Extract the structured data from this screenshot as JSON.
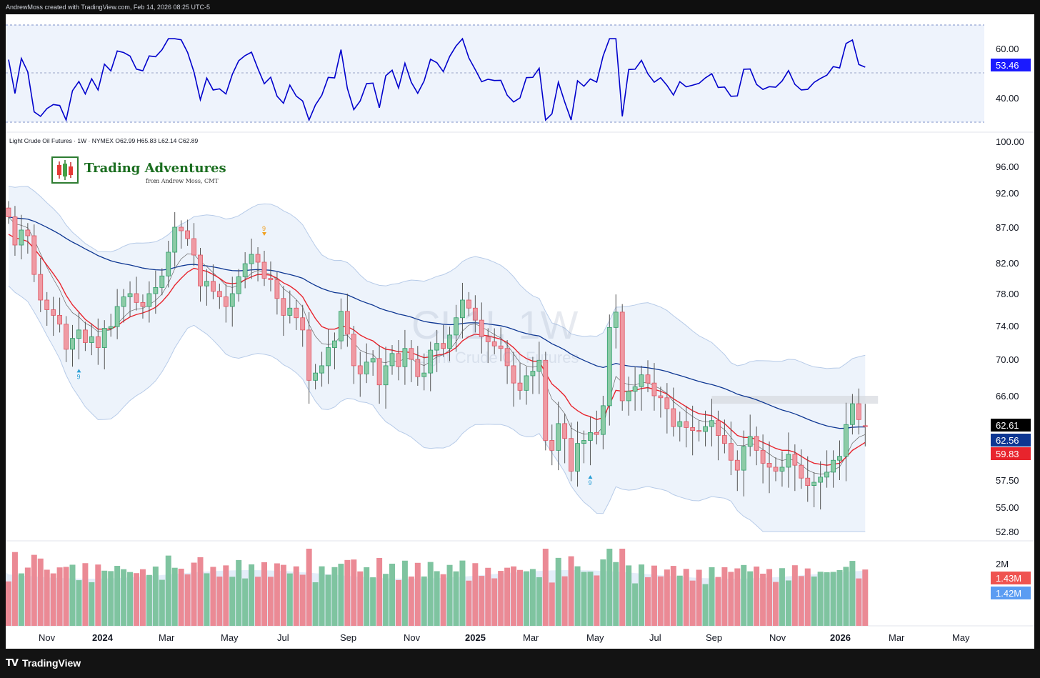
{
  "header": {
    "attribution": "AndrewMoss created with TradingView.com, Feb 14, 2026 08:25 UTC-5"
  },
  "footer": {
    "brand": "TradingView",
    "mark": "TV"
  },
  "legend": {
    "symbol_line": "Light Crude Oil Futures · 1W · NYMEX",
    "open": "O62.99",
    "high": "H65.83",
    "low": "L62.14",
    "close": "C62.89"
  },
  "logo": {
    "title": "Trading Adventures",
    "subtitle": "from Andrew Moss, CMT"
  },
  "watermark": {
    "ticker": "CL1!, 1W",
    "name": "Light Crude Oil Futures"
  },
  "colors": {
    "up": "#2e9e6a",
    "up_fill": "#8ccba6",
    "down": "#e05562",
    "down_fill": "#ef9aa3",
    "rsi_line": "#0000cc",
    "ema_fast": "#e8242d",
    "sma_slow": "#0d3692",
    "band": "#e6eefa"
  },
  "chart_data": [
    {
      "type": "candlestick",
      "title": "Light Crude Oil Futures · 1W · NYMEX",
      "y_ticks": [
        "100.00",
        "96.00",
        "92.00",
        "87.00",
        "82.00",
        "78.00",
        "74.00",
        "70.00",
        "66.00",
        "62.61",
        "62.56",
        "59.83",
        "57.50",
        "55.00",
        "52.80"
      ],
      "x_ticks": [
        "Nov",
        "2024",
        "Mar",
        "May",
        "Jul",
        "Sep",
        "Nov",
        "2025",
        "Mar",
        "May",
        "Jul",
        "Sep",
        "Nov",
        "2026",
        "Mar",
        "May"
      ],
      "ylim": [
        52.8,
        100
      ],
      "price_labels": [
        {
          "text": "62.61",
          "color": "#000000"
        },
        {
          "text": "62.56",
          "color": "#0d3692"
        },
        {
          "text": "59.83",
          "color": "#e8242d"
        }
      ],
      "td_markers": [
        {
          "text": "9",
          "direction": "up",
          "date": "2023-11"
        },
        {
          "text": "9",
          "direction": "down",
          "date": "2024-04"
        },
        {
          "text": "9",
          "direction": "up",
          "date": "2025-03"
        }
      ],
      "resistance_zone": [
        65.2,
        66.0
      ],
      "series": [
        {
          "name": "close",
          "values": [
            88.5,
            84.5,
            86.6,
            85.8,
            80.5,
            77.2,
            76.0,
            75.3,
            74.2,
            71.2,
            72.5,
            73.5,
            72.0,
            72.7,
            71.4,
            73.7,
            73.9,
            76.4,
            77.6,
            78.0,
            76.9,
            76.4,
            78.0,
            78.8,
            80.3,
            83.5,
            87.0,
            86.5,
            85.4,
            83.1,
            79.0,
            79.6,
            78.3,
            77.6,
            76.4,
            78.0,
            80.2,
            81.9,
            83.2,
            82.1,
            80.0,
            79.8,
            77.4,
            75.3,
            76.2,
            75.0,
            73.5,
            67.7,
            68.5,
            69.3,
            71.4,
            72.2,
            75.8,
            73.0,
            69.3,
            68.4,
            69.7,
            70.1,
            67.2,
            69.3,
            70.7,
            69.2,
            71.3,
            70.0,
            68.1,
            68.5,
            71.1,
            71.9,
            71.3,
            72.9,
            75.0,
            77.2,
            76.2,
            74.7,
            72.7,
            72.1,
            71.6,
            71.3,
            69.3,
            67.4,
            66.6,
            68.2,
            68.7,
            69.9,
            61.5,
            60.5,
            63.2,
            61.7,
            58.4,
            61.2,
            61.5,
            62.3,
            62.1,
            65.0,
            73.8,
            75.7,
            65.5,
            66.5,
            67.0,
            68.3,
            67.4,
            66.0,
            65.8,
            64.7,
            62.9,
            63.4,
            62.8,
            62.5,
            62.4,
            62.9,
            63.5,
            62.0,
            61.2,
            59.5,
            58.5,
            60.9,
            61.9,
            60.5,
            59.2,
            58.8,
            58.4,
            58.8,
            60.1,
            59.0,
            57.7,
            57.0,
            57.3,
            57.8,
            58.3,
            59.5,
            59.9,
            63.1,
            65.2,
            63.6,
            62.9
          ]
        },
        {
          "name": "open",
          "values": [
            89.8,
            88.5,
            84.5,
            86.6,
            85.8,
            80.5,
            77.2,
            76.0,
            75.3,
            74.2,
            71.2,
            72.5,
            73.5,
            72.0,
            72.7,
            71.4,
            73.7,
            73.9,
            76.4,
            77.6,
            78.0,
            76.9,
            76.4,
            78.0,
            78.8,
            80.3,
            83.5,
            87.0,
            86.5,
            85.4,
            83.1,
            79.0,
            79.6,
            78.3,
            77.6,
            76.4,
            78.0,
            80.2,
            81.9,
            83.2,
            82.1,
            80.0,
            79.8,
            77.4,
            75.3,
            76.2,
            75.0,
            73.5,
            67.7,
            68.5,
            69.3,
            71.4,
            72.2,
            75.8,
            73.0,
            69.3,
            68.4,
            69.7,
            70.1,
            67.2,
            69.3,
            70.7,
            69.2,
            71.3,
            70.0,
            68.1,
            68.5,
            71.1,
            71.9,
            71.3,
            72.9,
            75.0,
            77.2,
            76.2,
            74.7,
            72.7,
            72.1,
            71.6,
            71.3,
            69.3,
            67.4,
            66.6,
            68.2,
            68.7,
            69.9,
            61.5,
            60.5,
            63.2,
            61.7,
            58.4,
            61.2,
            61.5,
            62.3,
            62.1,
            65.0,
            73.8,
            75.7,
            65.5,
            66.5,
            67.0,
            68.3,
            67.4,
            66.0,
            65.8,
            64.7,
            62.9,
            63.4,
            62.8,
            62.5,
            62.4,
            62.9,
            63.5,
            62.0,
            61.2,
            59.5,
            58.5,
            60.9,
            61.9,
            60.5,
            59.2,
            58.8,
            58.4,
            58.8,
            60.1,
            59.0,
            57.7,
            57.0,
            57.3,
            57.8,
            58.3,
            59.5,
            59.9,
            63.1,
            65.2,
            62.99
          ]
        }
      ],
      "ema_values": [
        86.0,
        85.5,
        85.3,
        85.0,
        84.0,
        82.9,
        81.7,
        80.6,
        79.4,
        77.8,
        76.6,
        75.7,
        74.8,
        74.2,
        73.6,
        73.6,
        73.6,
        74.0,
        74.6,
        75.1,
        75.4,
        75.6,
        75.9,
        76.3,
        77.0,
        77.9,
        79.1,
        80.0,
        80.8,
        81.3,
        81.1,
        80.9,
        80.5,
        80.0,
        79.4,
        79.3,
        79.4,
        79.8,
        80.2,
        80.5,
        80.5,
        80.4,
        80.0,
        79.4,
        79.0,
        78.4,
        77.6,
        76.2,
        74.9,
        73.9,
        73.6,
        73.6,
        73.9,
        73.9,
        73.5,
        72.9,
        72.5,
        72.2,
        71.6,
        71.2,
        71.1,
        70.9,
        70.9,
        70.8,
        70.5,
        70.2,
        70.3,
        70.5,
        70.6,
        70.9,
        71.4,
        72.2,
        72.7,
        73.0,
        72.9,
        72.8,
        72.6,
        72.4,
        72.0,
        71.4,
        70.6,
        70.1,
        69.8,
        69.8,
        68.5,
        67.3,
        66.7,
        66.0,
        65.0,
        64.5,
        64.1,
        63.9,
        63.6,
        63.8,
        65.1,
        66.6,
        66.5,
        66.5,
        66.6,
        66.8,
        66.9,
        66.7,
        66.5,
        66.2,
        65.7,
        65.3,
        64.9,
        64.5,
        64.2,
        64.1,
        64.0,
        63.6,
        63.2,
        62.6,
        62.0,
        61.8,
        61.8,
        61.6,
        61.3,
        61.0,
        60.7,
        60.5,
        60.5,
        60.3,
        59.9,
        59.5,
        59.2,
        59.1,
        59.0,
        59.1,
        59.2,
        59.8,
        60.5,
        60.9,
        61.3
      ]
    },
    {
      "type": "line",
      "title": "RSI",
      "y_ticks": [
        "60.00",
        "40.00"
      ],
      "last_label": "53.46",
      "ylim": [
        30,
        70
      ]
    },
    {
      "type": "bar",
      "title": "Volume",
      "y_ticks": [
        "2M"
      ],
      "labels": [
        {
          "text": "1.43M",
          "color": "#ef5350"
        },
        {
          "text": "1.42M",
          "color": "#5b9cf2"
        }
      ]
    }
  ]
}
